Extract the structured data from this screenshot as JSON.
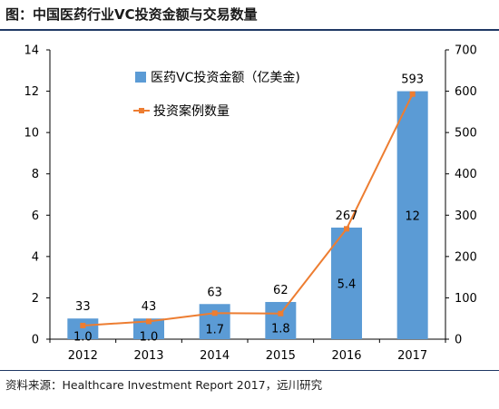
{
  "figure": {
    "title": "图：中国医药行业VC投资金额与交易数量",
    "source": "资料来源：Healthcare Investment Report 2017，远川研究"
  },
  "chart_data": {
    "type": "bar+line",
    "categories": [
      "2012",
      "2013",
      "2014",
      "2015",
      "2016",
      "2017"
    ],
    "series": [
      {
        "name": "医药VC投资金额（亿美金)",
        "type": "bar",
        "axis": "left",
        "values": [
          1.0,
          1.0,
          1.7,
          1.8,
          5.4,
          12
        ],
        "labels": [
          "1.0",
          "1.0",
          "1.7",
          "1.8",
          "5.4",
          "12"
        ],
        "color": "#5b9bd5"
      },
      {
        "name": "投资案例数量",
        "type": "line",
        "axis": "right",
        "values": [
          33,
          43,
          63,
          62,
          267,
          593
        ],
        "labels": [
          "33",
          "43",
          "63",
          "62",
          "267",
          "593"
        ],
        "color": "#ed7d31"
      }
    ],
    "y_left": {
      "min": 0,
      "max": 14,
      "ticks": [
        "0",
        "2",
        "4",
        "6",
        "8",
        "10",
        "12",
        "14"
      ]
    },
    "y_right": {
      "min": 0,
      "max": 700,
      "ticks": [
        "0",
        "100",
        "200",
        "300",
        "400",
        "500",
        "600",
        "700"
      ]
    },
    "legend_position": "top-left",
    "grid": false
  }
}
